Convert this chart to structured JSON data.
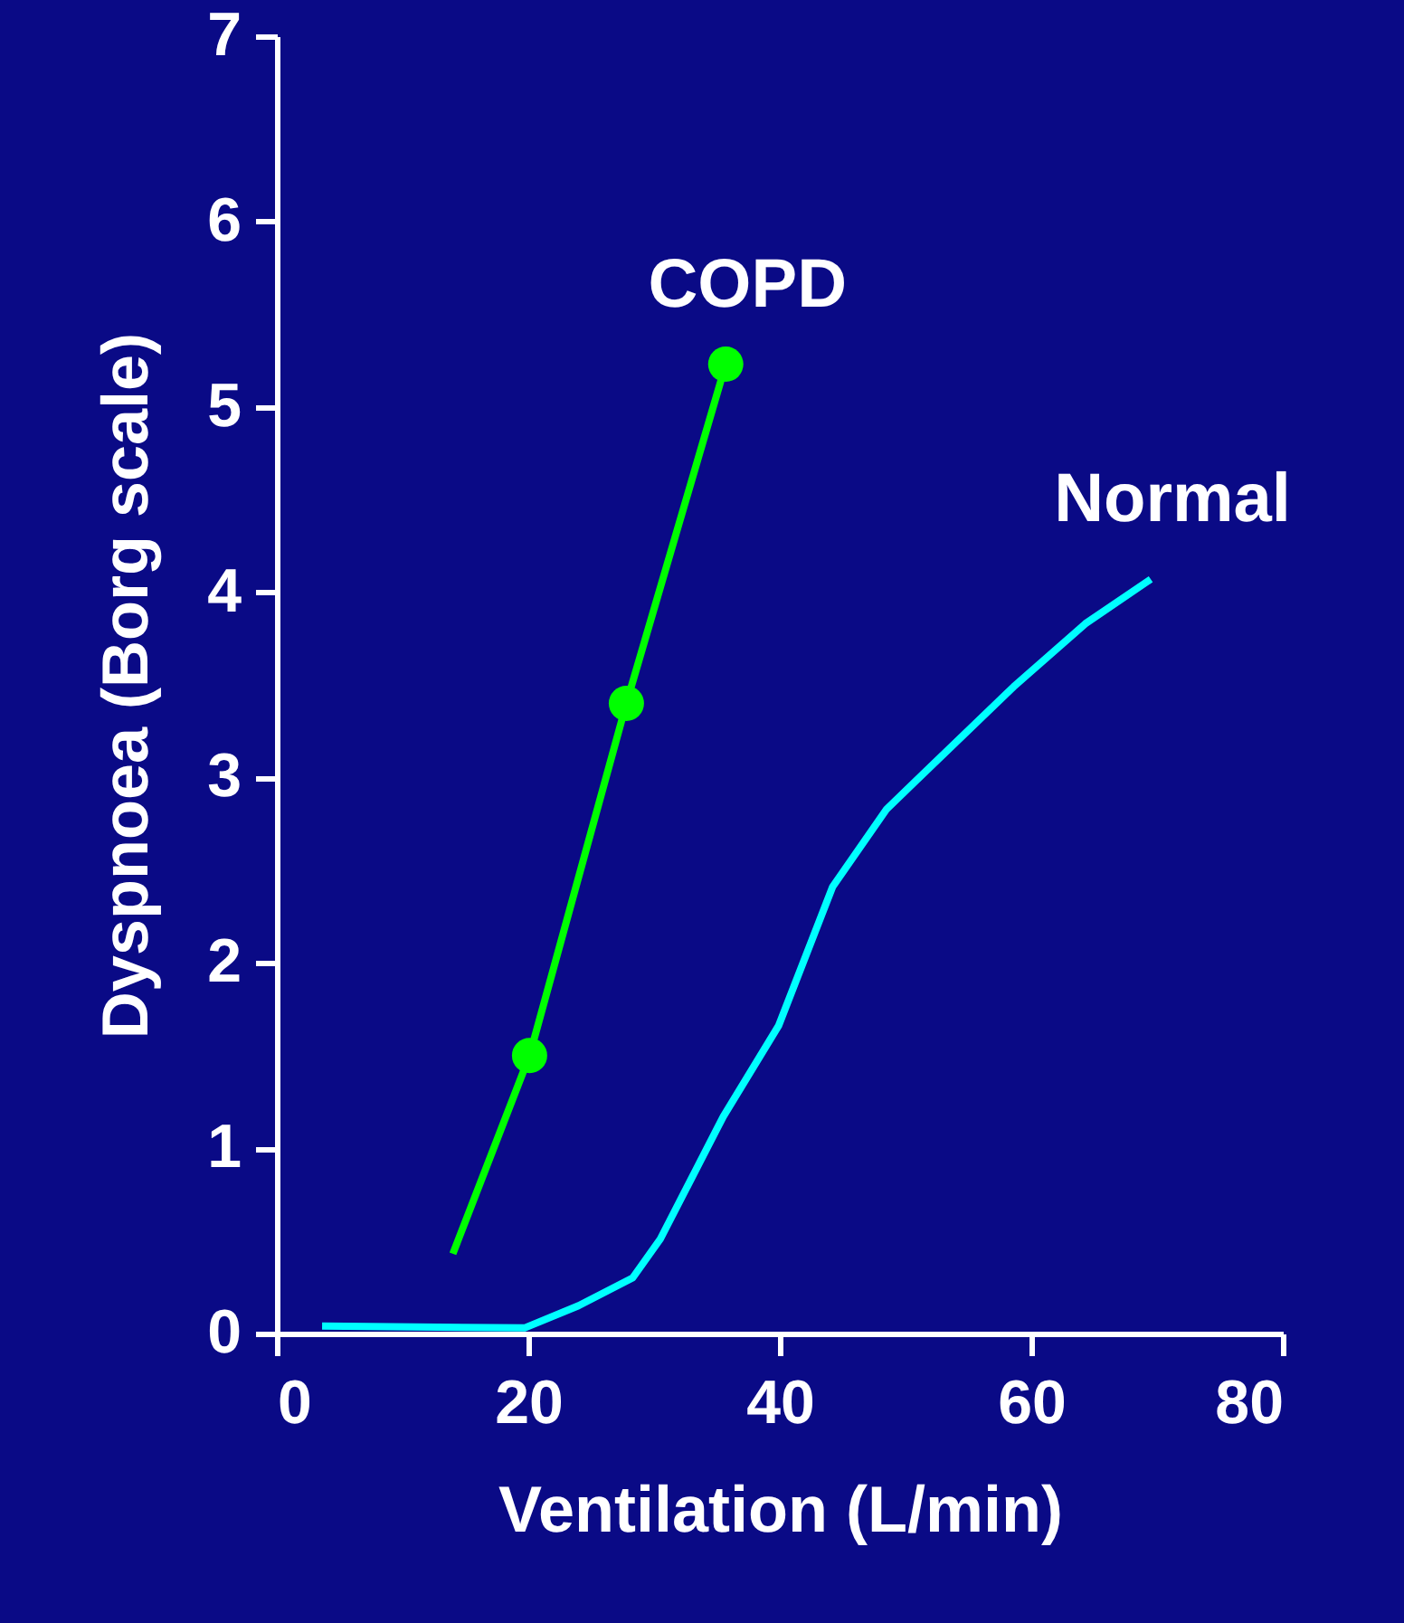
{
  "chart_data": {
    "type": "line",
    "xlabel": "Ventilation (L/min)",
    "ylabel": "Dyspnoea (Borg scale)",
    "xlim": [
      0,
      80
    ],
    "xticks": [
      0,
      20,
      40,
      60,
      80
    ],
    "ylim": [
      0,
      7
    ],
    "yticks": [
      0,
      1,
      2,
      3,
      4,
      5,
      6,
      7
    ],
    "grid": false,
    "line_style": "solid",
    "marker": "none",
    "series": [
      {
        "name": "COPD",
        "color": "#00ff00",
        "x": [
          14.0,
          20.1,
          27.8,
          35.7
        ],
        "values": [
          0.43,
          1.5,
          3.4,
          5.23
        ]
      },
      {
        "type": "scatter",
        "marker": "circle",
        "color": "#00ff00",
        "x": [
          20.1,
          27.8,
          35.7
        ],
        "values": [
          1.5,
          3.4,
          5.23
        ]
      },
      {
        "name": "Normal",
        "color": "#00ffff",
        "x": [
          3.6,
          19.7,
          24.0,
          28.3,
          30.5,
          35.5,
          39.9,
          44.2,
          48.5,
          51.4,
          58.6,
          64.3,
          69.5
        ],
        "values": [
          0.04,
          0.03,
          0.15,
          0.3,
          0.51,
          1.17,
          1.66,
          2.41,
          2.83,
          3.02,
          3.49,
          3.83,
          4.07
        ]
      }
    ]
  }
}
